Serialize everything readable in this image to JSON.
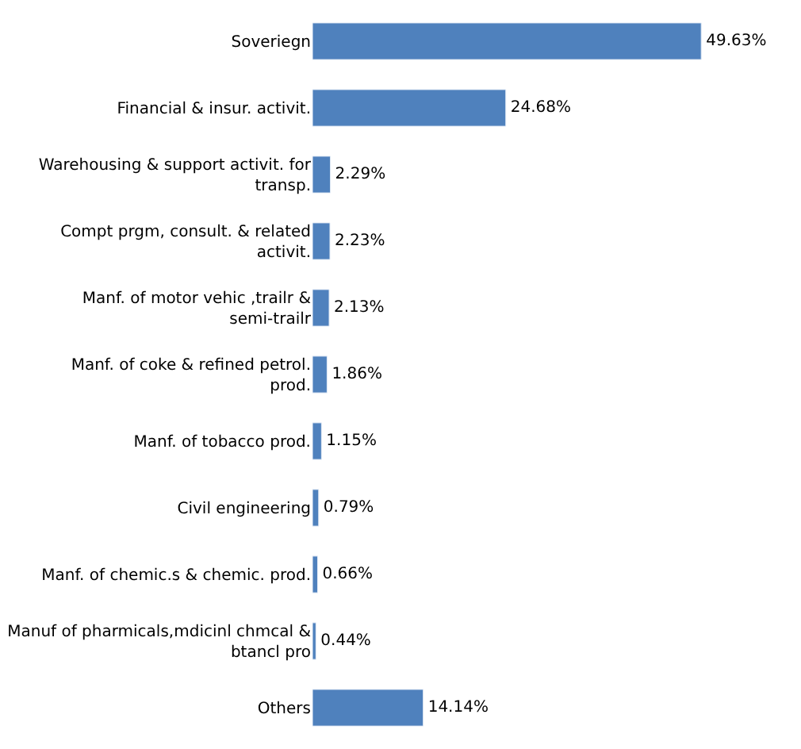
{
  "chart_data": {
    "type": "bar",
    "orientation": "horizontal",
    "tick_labels": "y",
    "legend": false,
    "categories": [
      "Soveriegn",
      "Financial & insur. activit.",
      "Warehousing & support activit. for transp.",
      "Compt prgm, consult. & related activit.",
      "Manf. of motor vehic ,trailr & semi-trailr",
      "Manf. of coke & refined petrol. prod.",
      "Manf. of tobacco prod.",
      "Civil engineering",
      "Manf. of chemic.s & chemic. prod.",
      "Manuf of pharmicals,mdicinl chmcal & btancl pro",
      "Others"
    ],
    "values": [
      49.63,
      24.68,
      2.29,
      2.23,
      2.13,
      1.86,
      1.15,
      0.79,
      0.66,
      0.44,
      14.14
    ],
    "value_labels": [
      "49.63%",
      "24.68%",
      "2.29%",
      "2.23%",
      "2.13%",
      "1.86%",
      "1.15%",
      "0.79%",
      "0.66%",
      "0.44%",
      "14.14%"
    ],
    "color": "#4f81bd"
  }
}
